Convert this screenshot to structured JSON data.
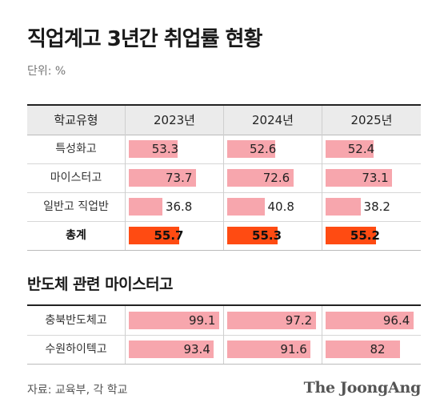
{
  "header": {
    "title": "직업계고 3년간 취업률 현황",
    "unit": "단위: %"
  },
  "table": {
    "column_label": "학교유형",
    "years": [
      "2023년",
      "2024년",
      "2025년"
    ]
  },
  "subtitle": "반도체 관련 마이스터고",
  "footer": {
    "source": "자료: 교육부, 각 학교",
    "brand": "The JoongAng"
  },
  "colors": {
    "bar": "#f7a6ad",
    "total_bar": "#ff4b12"
  },
  "chart_data": [
    {
      "type": "bar",
      "categories": [
        "특성화고",
        "마이스터고",
        "일반고 직업반",
        "총계"
      ],
      "x": [
        "2023년",
        "2024년",
        "2025년"
      ],
      "series": [
        {
          "name": "2023년",
          "values": [
            53.3,
            73.7,
            36.8,
            55.7
          ]
        },
        {
          "name": "2024년",
          "values": [
            52.6,
            72.6,
            40.8,
            55.3
          ]
        },
        {
          "name": "2025년",
          "values": [
            52.4,
            73.1,
            38.2,
            55.2
          ]
        }
      ],
      "labels": [
        [
          "53.3",
          "52.6",
          "52.4"
        ],
        [
          "73.7",
          "72.6",
          "73.1"
        ],
        [
          "36.8",
          "40.8",
          "38.2"
        ],
        [
          "55.7",
          "55.3",
          "55.2"
        ]
      ],
      "ylim": [
        0,
        100
      ]
    },
    {
      "type": "bar",
      "categories": [
        "충북반도체고",
        "수원하이텍고"
      ],
      "x": [
        "2023년",
        "2024년",
        "2025년"
      ],
      "series": [
        {
          "name": "2023년",
          "values": [
            99.1,
            93.4
          ]
        },
        {
          "name": "2024년",
          "values": [
            97.2,
            91.6
          ]
        },
        {
          "name": "2025년",
          "values": [
            96.4,
            82
          ]
        }
      ],
      "labels": [
        [
          "99.1",
          "97.2",
          "96.4"
        ],
        [
          "93.4",
          "91.6",
          "82"
        ]
      ],
      "ylim": [
        0,
        100
      ]
    }
  ]
}
